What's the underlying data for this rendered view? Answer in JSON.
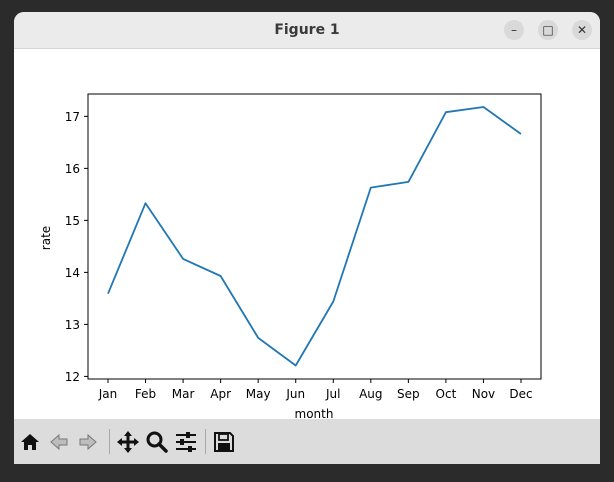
{
  "window": {
    "title": "Figure 1"
  },
  "controls": {
    "minimize": "–",
    "maximize": "□",
    "close": "✕"
  },
  "toolbar": {
    "icons": [
      "home-icon",
      "back-arrow-icon",
      "forward-arrow-icon",
      "pan-move-icon",
      "zoom-magnifier-icon",
      "configure-subplots-icon",
      "save-disk-icon"
    ]
  },
  "chart_data": {
    "type": "line",
    "categories": [
      "Jan",
      "Feb",
      "Mar",
      "Apr",
      "May",
      "Jun",
      "Jul",
      "Aug",
      "Sep",
      "Oct",
      "Nov",
      "Dec"
    ],
    "series": [
      {
        "values": [
          13.59,
          15.33,
          14.26,
          13.93,
          12.74,
          12.21,
          13.44,
          15.63,
          15.74,
          17.08,
          17.18,
          16.66
        ]
      }
    ],
    "xlabel": "month",
    "ylabel": "rate",
    "ylim": [
      11.95,
      17.43
    ],
    "yticks": [
      12,
      13,
      14,
      15,
      16,
      17
    ],
    "grid": false,
    "line_color": "#1f77b4"
  }
}
